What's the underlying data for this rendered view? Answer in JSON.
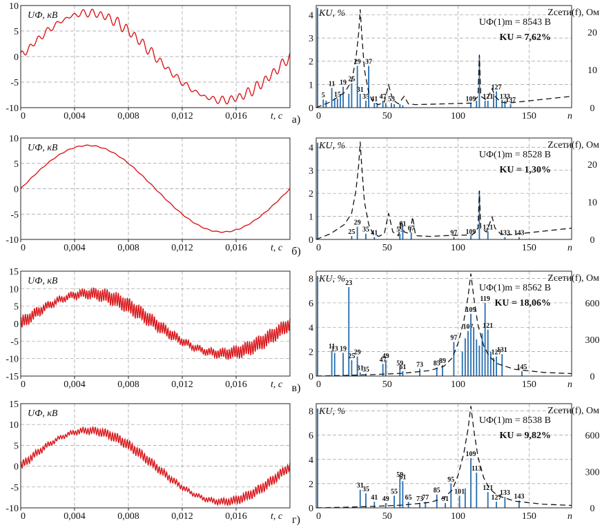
{
  "chart_data": [
    {
      "type": "line",
      "panel": "а",
      "ylabel": "UФ, кВ",
      "xlabel": "t, с",
      "xlim": [
        0,
        0.02
      ],
      "ylim": [
        -10,
        10
      ],
      "xticks": [
        "0",
        "0,004",
        "0,008",
        "0,012",
        "0,016"
      ],
      "yticks": [
        "10",
        "5",
        "0",
        "-5",
        "-10"
      ],
      "amplitude_kV": 8.54,
      "ripple_kV": 0.65,
      "ripple_harmonic": 31
    },
    {
      "type": "bar",
      "panel": "а",
      "ylabel": "KU, %",
      "y2label": "Zсети(f), Ом",
      "xlabel": "n",
      "xlim": [
        0,
        180
      ],
      "ylim": [
        0,
        4.4
      ],
      "y2lim": [
        0,
        27
      ],
      "xticks": [
        "0",
        "50",
        "100",
        "150"
      ],
      "yticks": [
        "4",
        "3",
        "2",
        "1",
        "0"
      ],
      "y2ticks": [
        "20",
        "10",
        "0"
      ],
      "summary_line1": "UФ(1)m = 8543 В",
      "summary_line2": "KU = 7,62%",
      "harmonics": [
        {
          "n": 1,
          "v": 4.3
        },
        {
          "n": 5,
          "v": 0.35,
          "label": "5"
        },
        {
          "n": 7,
          "v": 0.3
        },
        {
          "n": 11,
          "v": 0.85,
          "label": "11"
        },
        {
          "n": 13,
          "v": 0.4
        },
        {
          "n": 15,
          "v": 0.38,
          "label": "15"
        },
        {
          "n": 17,
          "v": 0.5
        },
        {
          "n": 19,
          "v": 0.9,
          "label": "19"
        },
        {
          "n": 23,
          "v": 0.6
        },
        {
          "n": 25,
          "v": 1.05,
          "label": "25"
        },
        {
          "n": 29,
          "v": 1.8,
          "label": "29"
        },
        {
          "n": 31,
          "v": 0.6,
          "label": "31"
        },
        {
          "n": 35,
          "v": 0.3,
          "label": "35"
        },
        {
          "n": 37,
          "v": 1.8,
          "label": "37"
        },
        {
          "n": 41,
          "v": 0.2,
          "label": "41"
        },
        {
          "n": 43,
          "v": 0.15
        },
        {
          "n": 47,
          "v": 0.3,
          "label": "47"
        },
        {
          "n": 49,
          "v": 0.2
        },
        {
          "n": 53,
          "v": 0.2,
          "label": "53"
        },
        {
          "n": 55,
          "v": 0.15
        },
        {
          "n": 59,
          "v": 0.15
        },
        {
          "n": 61,
          "v": 0.1
        },
        {
          "n": 109,
          "v": 0.2,
          "label": "109"
        },
        {
          "n": 113,
          "v": 0.3
        },
        {
          "n": 115,
          "v": 2.2
        },
        {
          "n": 119,
          "v": 0.3
        },
        {
          "n": 121,
          "v": 0.3,
          "label": "121"
        },
        {
          "n": 125,
          "v": 0.6
        },
        {
          "n": 127,
          "v": 0.7,
          "label": "127"
        },
        {
          "n": 131,
          "v": 0.35
        },
        {
          "n": 133,
          "v": 0.3,
          "label": "133"
        },
        {
          "n": 137,
          "v": 0.15,
          "label": "137"
        }
      ],
      "impedance_ohm": [
        [
          0,
          0
        ],
        [
          10,
          1.5
        ],
        [
          20,
          4
        ],
        [
          25,
          7
        ],
        [
          28,
          13
        ],
        [
          30,
          20
        ],
        [
          31,
          26
        ],
        [
          32,
          20
        ],
        [
          34,
          10
        ],
        [
          37,
          4
        ],
        [
          40,
          1.5
        ],
        [
          44,
          0.8
        ],
        [
          48,
          1.5
        ],
        [
          51,
          6
        ],
        [
          54,
          2
        ],
        [
          58,
          1
        ],
        [
          62,
          3
        ],
        [
          65,
          1
        ],
        [
          70,
          0.8
        ],
        [
          80,
          0.9
        ],
        [
          90,
          1
        ],
        [
          100,
          1.1
        ],
        [
          110,
          1.2
        ],
        [
          114,
          3
        ],
        [
          115,
          14
        ],
        [
          116,
          3
        ],
        [
          120,
          2
        ],
        [
          124,
          5
        ],
        [
          126,
          3
        ],
        [
          130,
          1.5
        ],
        [
          135,
          1.2
        ],
        [
          150,
          1.8
        ],
        [
          165,
          2.4
        ],
        [
          180,
          3
        ]
      ]
    },
    {
      "type": "line",
      "panel": "б",
      "ylabel": "UФ, кВ",
      "xlabel": "t, с",
      "xlim": [
        0,
        0.02
      ],
      "ylim": [
        -10,
        10
      ],
      "xticks": [
        "0",
        "0,004",
        "0,008",
        "0,012",
        "0,016"
      ],
      "yticks": [
        "10",
        "5",
        "0",
        "-5",
        "-10"
      ],
      "amplitude_kV": 8.53,
      "ripple_kV": 0.08,
      "ripple_harmonic": 29
    },
    {
      "type": "bar",
      "panel": "б",
      "ylabel": "KU, %",
      "y2label": "Zсети(f), Ом",
      "xlabel": "n",
      "xlim": [
        0,
        180
      ],
      "ylim": [
        0,
        4.4
      ],
      "y2lim": [
        0,
        27
      ],
      "xticks": [
        "0",
        "50",
        "100",
        "150"
      ],
      "yticks": [
        "4",
        "3",
        "2",
        "1",
        "0"
      ],
      "y2ticks": [
        "20",
        "10",
        "0"
      ],
      "summary_line1": "UФ(1)m = 8528 В",
      "summary_line2": "KU = 1,30%",
      "harmonics": [
        {
          "n": 1,
          "v": 4.2
        },
        {
          "n": 25,
          "v": 0.15,
          "label": "25"
        },
        {
          "n": 29,
          "v": 0.55,
          "label": "29"
        },
        {
          "n": 35,
          "v": 0.25,
          "label": "35"
        },
        {
          "n": 41,
          "v": 0.1,
          "label": "41"
        },
        {
          "n": 59,
          "v": 0.25,
          "label": "59"
        },
        {
          "n": 61,
          "v": 0.5,
          "label": "61"
        },
        {
          "n": 67,
          "v": 0.3,
          "label": "67"
        },
        {
          "n": 97,
          "v": 0.1,
          "label": "97"
        },
        {
          "n": 109,
          "v": 0.15,
          "label": "109"
        },
        {
          "n": 115,
          "v": 2.1
        },
        {
          "n": 121,
          "v": 0.35,
          "label": "121"
        },
        {
          "n": 133,
          "v": 0.1,
          "label": "133"
        },
        {
          "n": 143,
          "v": 0.1,
          "label": "143"
        }
      ],
      "impedance_ohm": [
        [
          0,
          0
        ],
        [
          10,
          1.5
        ],
        [
          20,
          4
        ],
        [
          25,
          7
        ],
        [
          28,
          13
        ],
        [
          30,
          20
        ],
        [
          31,
          26
        ],
        [
          32,
          20
        ],
        [
          34,
          10
        ],
        [
          37,
          4
        ],
        [
          40,
          1.5
        ],
        [
          44,
          0.8
        ],
        [
          48,
          1.5
        ],
        [
          51,
          7
        ],
        [
          54,
          2
        ],
        [
          58,
          1
        ],
        [
          60,
          5
        ],
        [
          62,
          2
        ],
        [
          66,
          1.5
        ],
        [
          68,
          6
        ],
        [
          70,
          1
        ],
        [
          80,
          0.8
        ],
        [
          90,
          1
        ],
        [
          100,
          1.1
        ],
        [
          110,
          1.2
        ],
        [
          114,
          3
        ],
        [
          115,
          13
        ],
        [
          116,
          3
        ],
        [
          120,
          2
        ],
        [
          124,
          6
        ],
        [
          126,
          3
        ],
        [
          130,
          1.5
        ],
        [
          135,
          1.2
        ],
        [
          150,
          1.8
        ],
        [
          165,
          2.4
        ],
        [
          180,
          3
        ]
      ]
    },
    {
      "type": "line",
      "panel": "в",
      "ylabel": "UФ, кВ",
      "xlabel": "t, с",
      "xlim": [
        0,
        0.02
      ],
      "ylim": [
        -15,
        15
      ],
      "xticks": [
        "0",
        "0,004",
        "0,008",
        "0,012",
        "0,016"
      ],
      "yticks": [
        "15",
        "10",
        "5",
        "0",
        "-5",
        "-10",
        "-15"
      ],
      "amplitude_kV": 8.56,
      "ripple_kV": 1.4,
      "ripple_harmonic": 119
    },
    {
      "type": "bar",
      "panel": "в",
      "ylabel": "KU, %",
      "y2label": "Zсети(f), Ом",
      "xlabel": "n",
      "xlim": [
        0,
        180
      ],
      "ylim": [
        0,
        8.6
      ],
      "y2lim": [
        0,
        860
      ],
      "xticks": [
        "0",
        "50",
        "100",
        "150"
      ],
      "yticks": [
        "8",
        "6",
        "4",
        "2",
        "0"
      ],
      "y2ticks": [
        "600",
        "300",
        "0"
      ],
      "summary_line1": "UФ(1)m = 8562 В",
      "summary_line2": "KU = 18,06%",
      "harmonics": [
        {
          "n": 1,
          "v": 8.2
        },
        {
          "n": 11,
          "v": 2.1,
          "label": "11"
        },
        {
          "n": 13,
          "v": 1.9,
          "label": "13"
        },
        {
          "n": 19,
          "v": 1.9,
          "label": "19"
        },
        {
          "n": 23,
          "v": 7.3,
          "label": "23"
        },
        {
          "n": 25,
          "v": 1.3,
          "label": "25"
        },
        {
          "n": 29,
          "v": 1.6,
          "label": "29"
        },
        {
          "n": 31,
          "v": 0.3,
          "label": "31"
        },
        {
          "n": 35,
          "v": 0.2,
          "label": "35"
        },
        {
          "n": 47,
          "v": 1.0,
          "label": "47"
        },
        {
          "n": 49,
          "v": 1.3,
          "label": "49"
        },
        {
          "n": 59,
          "v": 0.7,
          "label": "59"
        },
        {
          "n": 61,
          "v": 0.4,
          "label": "61"
        },
        {
          "n": 73,
          "v": 0.6,
          "label": "73"
        },
        {
          "n": 85,
          "v": 0.7,
          "label": "85"
        },
        {
          "n": 89,
          "v": 0.9,
          "label": "89"
        },
        {
          "n": 97,
          "v": 2.8,
          "label": "97"
        },
        {
          "n": 103,
          "v": 2.0
        },
        {
          "n": 105,
          "v": 3.1
        },
        {
          "n": 107,
          "v": 3.7,
          "label": "107"
        },
        {
          "n": 109,
          "v": 5.1,
          "label": "109"
        },
        {
          "n": 111,
          "v": 4.0
        },
        {
          "n": 113,
          "v": 3.0
        },
        {
          "n": 115,
          "v": 2.5
        },
        {
          "n": 117,
          "v": 3.5
        },
        {
          "n": 119,
          "v": 6.0,
          "label": "119"
        },
        {
          "n": 121,
          "v": 3.8,
          "label": "121"
        },
        {
          "n": 123,
          "v": 2.0
        },
        {
          "n": 125,
          "v": 1.5
        },
        {
          "n": 127,
          "v": 1.6,
          "label": "127"
        },
        {
          "n": 131,
          "v": 1.8,
          "label": "131"
        },
        {
          "n": 145,
          "v": 0.4,
          "label": "145"
        }
      ],
      "impedance_ohm": [
        [
          0,
          0
        ],
        [
          20,
          5
        ],
        [
          40,
          12
        ],
        [
          60,
          22
        ],
        [
          80,
          45
        ],
        [
          90,
          80
        ],
        [
          96,
          150
        ],
        [
          100,
          270
        ],
        [
          104,
          450
        ],
        [
          107,
          650
        ],
        [
          109,
          840
        ],
        [
          111,
          650
        ],
        [
          114,
          420
        ],
        [
          118,
          250
        ],
        [
          122,
          160
        ],
        [
          128,
          100
        ],
        [
          140,
          55
        ],
        [
          160,
          30
        ],
        [
          180,
          20
        ]
      ]
    },
    {
      "type": "line",
      "panel": "г",
      "ylabel": "UФ, кВ",
      "xlabel": "t, с",
      "xlim": [
        0,
        0.02
      ],
      "ylim": [
        -10,
        15
      ],
      "xticks": [
        "0",
        "0,004",
        "0,008",
        "0,012",
        "0,016"
      ],
      "yticks": [
        "15",
        "10",
        "5",
        "0",
        "-5",
        "-10"
      ],
      "amplitude_kV": 8.54,
      "ripple_kV": 0.75,
      "ripple_harmonic": 109
    },
    {
      "type": "bar",
      "panel": "г",
      "ylabel": "KU, %",
      "y2label": "Zсети(f), Ом",
      "xlabel": "n",
      "xlim": [
        0,
        180
      ],
      "ylim": [
        0,
        8.6
      ],
      "y2lim": [
        0,
        860
      ],
      "xticks": [
        "0",
        "50",
        "100",
        "150"
      ],
      "yticks": [
        "8",
        "6",
        "4",
        "2",
        "0"
      ],
      "y2ticks": [
        "600",
        "300",
        "0"
      ],
      "summary_line1": "UФ(1)m = 8538 В",
      "summary_line2": "KU = 9,82%",
      "harmonics": [
        {
          "n": 1,
          "v": 8.2
        },
        {
          "n": 31,
          "v": 1.5,
          "label": "31"
        },
        {
          "n": 35,
          "v": 1.2,
          "label": "35"
        },
        {
          "n": 41,
          "v": 0.5,
          "label": "41"
        },
        {
          "n": 49,
          "v": 0.4,
          "label": "49"
        },
        {
          "n": 55,
          "v": 1.0,
          "label": "55"
        },
        {
          "n": 59,
          "v": 2.4,
          "label": "59"
        },
        {
          "n": 61,
          "v": 2.2,
          "label": "61"
        },
        {
          "n": 65,
          "v": 0.5,
          "label": "65"
        },
        {
          "n": 73,
          "v": 0.4,
          "label": "73"
        },
        {
          "n": 77,
          "v": 0.5,
          "label": "77"
        },
        {
          "n": 85,
          "v": 1.1,
          "label": "85"
        },
        {
          "n": 91,
          "v": 0.4,
          "label": "91"
        },
        {
          "n": 95,
          "v": 2.0,
          "label": "95"
        },
        {
          "n": 101,
          "v": 1.0,
          "label": "101"
        },
        {
          "n": 105,
          "v": 1.6
        },
        {
          "n": 109,
          "v": 4.1,
          "label": "109"
        },
        {
          "n": 113,
          "v": 2.9,
          "label": "113"
        },
        {
          "n": 121,
          "v": 1.3,
          "label": "121"
        },
        {
          "n": 127,
          "v": 0.5,
          "label": "127"
        },
        {
          "n": 133,
          "v": 0.9,
          "label": "133"
        },
        {
          "n": 143,
          "v": 0.6,
          "label": "143"
        }
      ],
      "impedance_ohm": [
        [
          0,
          0
        ],
        [
          20,
          5
        ],
        [
          40,
          12
        ],
        [
          60,
          22
        ],
        [
          80,
          45
        ],
        [
          90,
          80
        ],
        [
          96,
          150
        ],
        [
          100,
          270
        ],
        [
          104,
          450
        ],
        [
          107,
          650
        ],
        [
          109,
          840
        ],
        [
          111,
          650
        ],
        [
          114,
          420
        ],
        [
          118,
          250
        ],
        [
          122,
          160
        ],
        [
          128,
          100
        ],
        [
          140,
          55
        ],
        [
          160,
          30
        ],
        [
          180,
          20
        ]
      ]
    }
  ]
}
